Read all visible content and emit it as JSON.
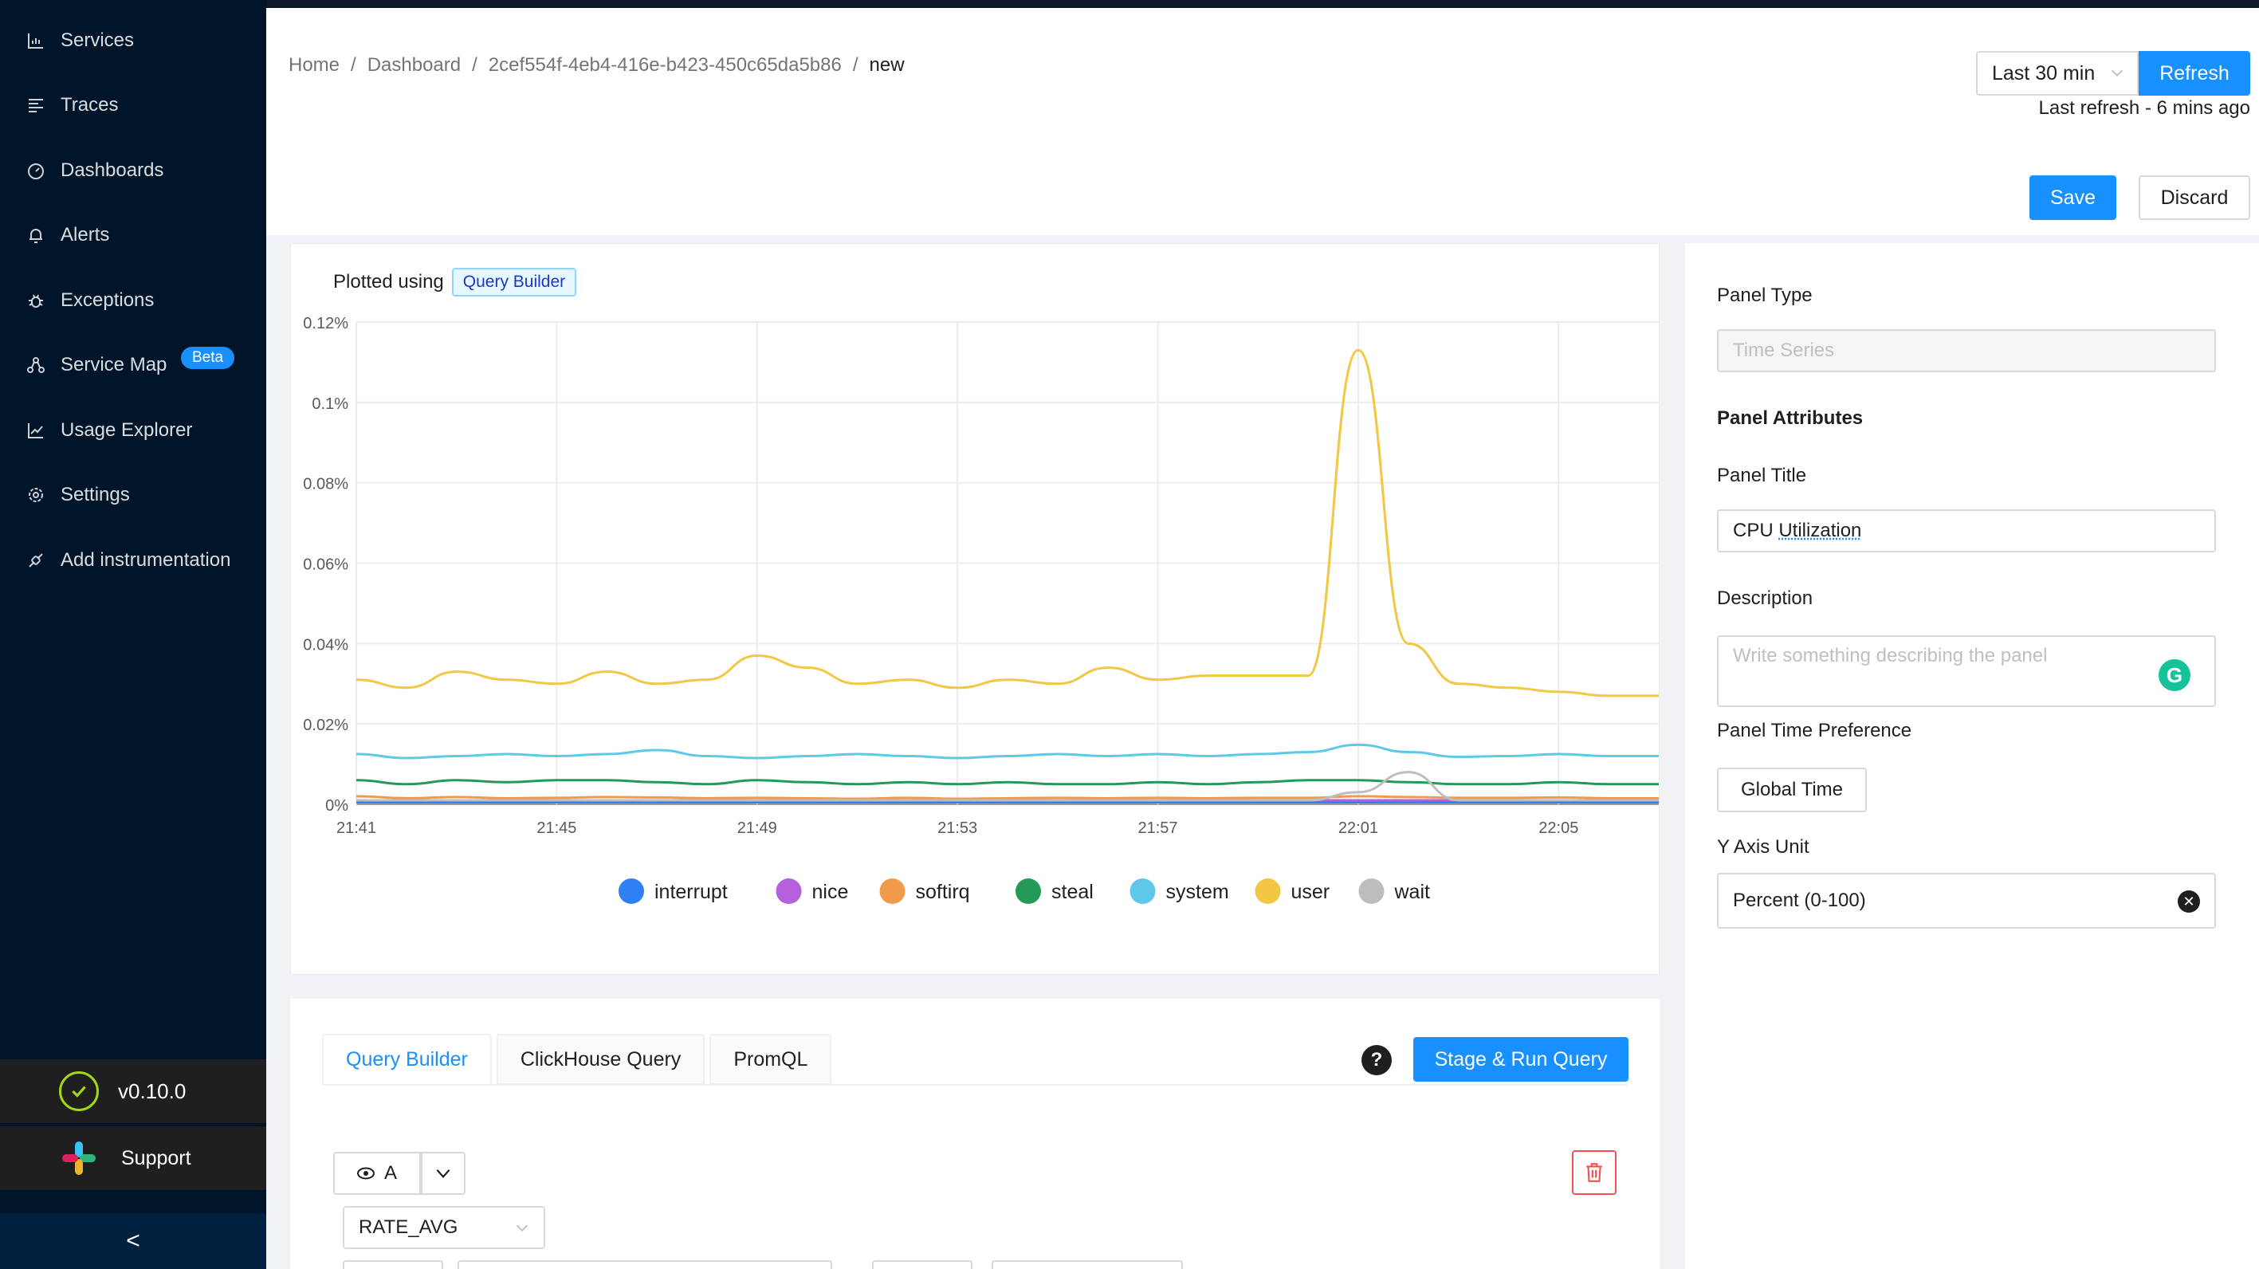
{
  "sidebar": {
    "items": [
      {
        "label": "Services",
        "icon": "bar-chart-icon"
      },
      {
        "label": "Traces",
        "icon": "align-left-icon"
      },
      {
        "label": "Dashboards",
        "icon": "dashboard-icon"
      },
      {
        "label": "Alerts",
        "icon": "bell-icon"
      },
      {
        "label": "Exceptions",
        "icon": "bug-icon"
      },
      {
        "label": "Service Map",
        "icon": "deployment-icon",
        "badge": "Beta"
      },
      {
        "label": "Usage Explorer",
        "icon": "line-chart-icon"
      },
      {
        "label": "Settings",
        "icon": "gear-icon"
      },
      {
        "label": "Add instrumentation",
        "icon": "api-icon"
      }
    ],
    "version": "v0.10.0",
    "support": "Support",
    "collapse_glyph": "<"
  },
  "breadcrumb": {
    "items": [
      "Home",
      "Dashboard",
      "2cef554f-4eb4-416e-b423-450c65da5b86",
      "new"
    ],
    "separator": "/"
  },
  "header": {
    "time_range": "Last 30 min",
    "refresh_label": "Refresh",
    "last_refresh": "Last refresh - 6 mins ago",
    "save_label": "Save",
    "discard_label": "Discard"
  },
  "chart_panel": {
    "plotted_using": "Plotted using",
    "tag": "Query Builder"
  },
  "chart_data": {
    "type": "line",
    "title": "",
    "xlabel": "",
    "ylabel": "",
    "ylim": [
      0,
      0.12
    ],
    "yticks": [
      "0%",
      "0.02%",
      "0.04%",
      "0.06%",
      "0.08%",
      "0.1%",
      "0.12%"
    ],
    "xticks": [
      "21:41",
      "21:45",
      "21:49",
      "21:53",
      "21:57",
      "22:01",
      "22:05"
    ],
    "x": [
      "21:41",
      "21:42",
      "21:43",
      "21:44",
      "21:45",
      "21:46",
      "21:47",
      "21:48",
      "21:49",
      "21:50",
      "21:51",
      "21:52",
      "21:53",
      "21:54",
      "21:55",
      "21:56",
      "21:57",
      "21:58",
      "21:59",
      "22:00",
      "22:01",
      "22:02",
      "22:03",
      "22:04",
      "22:05",
      "22:06"
    ],
    "legend_position": "bottom",
    "series": [
      {
        "name": "interrupt",
        "color": "#2f7ff5",
        "values": [
          0.0005,
          0.0005,
          0.0005,
          0.0005,
          0.0005,
          0.0005,
          0.0005,
          0.0005,
          0.0005,
          0.0005,
          0.0005,
          0.0005,
          0.0005,
          0.0005,
          0.0005,
          0.0005,
          0.0005,
          0.0005,
          0.0005,
          0.0005,
          0.0005,
          0.0005,
          0.0005,
          0.0005,
          0.0005,
          0.0005
        ]
      },
      {
        "name": "nice",
        "color": "#b45fdc",
        "values": [
          0.001,
          0.001,
          0.001,
          0.001,
          0.001,
          0.001,
          0.001,
          0.001,
          0.001,
          0.001,
          0.001,
          0.001,
          0.001,
          0.001,
          0.001,
          0.001,
          0.001,
          0.001,
          0.001,
          0.001,
          0.001,
          0.001,
          0.001,
          0.001,
          0.001,
          0.001
        ]
      },
      {
        "name": "softirq",
        "color": "#f29a4b",
        "values": [
          0.002,
          0.0015,
          0.0018,
          0.0015,
          0.0016,
          0.0018,
          0.0017,
          0.0015,
          0.0016,
          0.0015,
          0.0014,
          0.0016,
          0.0014,
          0.0015,
          0.0016,
          0.0015,
          0.0016,
          0.0015,
          0.0016,
          0.0016,
          0.002,
          0.0018,
          0.0016,
          0.0016,
          0.0017,
          0.0015
        ]
      },
      {
        "name": "steal",
        "color": "#239a55",
        "values": [
          0.006,
          0.005,
          0.006,
          0.0055,
          0.006,
          0.006,
          0.0055,
          0.005,
          0.006,
          0.0055,
          0.005,
          0.0055,
          0.005,
          0.0055,
          0.005,
          0.005,
          0.0055,
          0.005,
          0.0055,
          0.006,
          0.006,
          0.0055,
          0.005,
          0.005,
          0.0055,
          0.005
        ]
      },
      {
        "name": "system",
        "color": "#5ec8e8",
        "values": [
          0.0125,
          0.0115,
          0.012,
          0.0125,
          0.012,
          0.0125,
          0.0135,
          0.012,
          0.0115,
          0.012,
          0.0125,
          0.012,
          0.0115,
          0.012,
          0.0125,
          0.012,
          0.0125,
          0.012,
          0.0125,
          0.013,
          0.0148,
          0.013,
          0.0118,
          0.012,
          0.0125,
          0.012
        ]
      },
      {
        "name": "user",
        "color": "#f2c744",
        "values": [
          0.031,
          0.029,
          0.033,
          0.031,
          0.03,
          0.033,
          0.03,
          0.031,
          0.037,
          0.034,
          0.03,
          0.031,
          0.029,
          0.031,
          0.03,
          0.034,
          0.031,
          0.032,
          0.032,
          0.032,
          0.113,
          0.04,
          0.03,
          0.029,
          0.028,
          0.027
        ]
      },
      {
        "name": "wait",
        "color": "#bdbdbd",
        "values": [
          0.001,
          0.001,
          0.001,
          0.001,
          0.001,
          0.001,
          0.001,
          0.001,
          0.001,
          0.001,
          0.001,
          0.001,
          0.001,
          0.001,
          0.001,
          0.001,
          0.001,
          0.001,
          0.001,
          0.001,
          0.003,
          0.008,
          0.001,
          0.001,
          0.001,
          0.001
        ]
      }
    ]
  },
  "query": {
    "tabs": [
      "Query Builder",
      "ClickHouse Query",
      "PromQL"
    ],
    "stage_label": "Stage & Run Query",
    "help_glyph": "?",
    "query_name": "A",
    "aggregate": "RATE_AVG"
  },
  "settings": {
    "panel_type_label": "Panel Type",
    "panel_type_value": "Time Series",
    "attributes_heading": "Panel Attributes",
    "title_label": "Panel Title",
    "title_value_1": "CPU ",
    "title_value_2": "Utilization",
    "description_label": "Description",
    "description_placeholder": "Write something describing the  panel",
    "time_pref_label": "Panel Time Preference",
    "time_pref_value": "Global Time",
    "y_unit_label": "Y Axis Unit",
    "y_unit_value": "Percent (0-100)"
  }
}
